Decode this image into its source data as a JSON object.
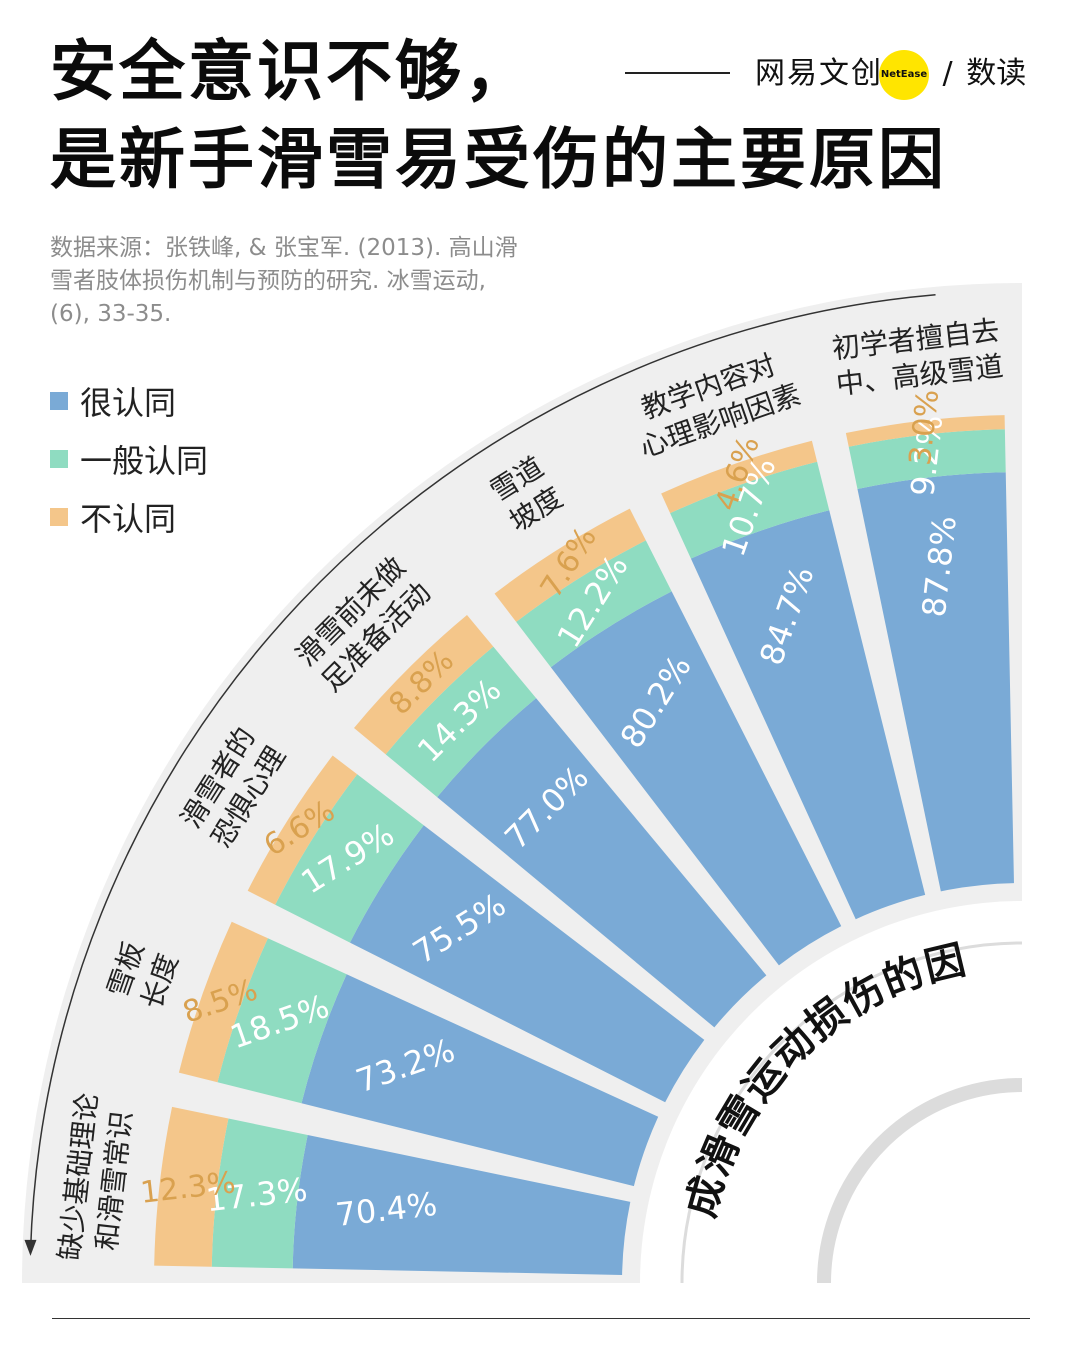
{
  "title": {
    "line1": "安全意识不够，",
    "line2": "是新手滑雪易受伤的主要原因"
  },
  "logo": {
    "brand": "网易文创",
    "badge": "NetEase",
    "separator": "/",
    "product": "数读"
  },
  "source": "数据来源：张铁峰, & 张宝军. (2013). 高山滑雪者肢体损伤机制与预防的研究. 冰雪运动, (6), 33-35.",
  "legend": [
    {
      "label": "很认同",
      "color": "#7aaad6"
    },
    {
      "label": "一般认同",
      "color": "#8fdcc1"
    },
    {
      "label": "不认同",
      "color": "#f4c68a"
    }
  ],
  "chart_data": {
    "type": "bar",
    "layout": "radial stacked bar (quarter fan)",
    "center_label": "造成滑雪运动损伤的因素",
    "unit": "%",
    "categories": [
      "缺少基础理论和滑雪常识",
      "雪板长度",
      "滑雪者的恐惧心理",
      "滑雪前未做足准备活动",
      "雪道坡度",
      "教学内容对心理影响因素",
      "初学者擅自去中、高级雪道"
    ],
    "category_lines": [
      [
        "缺少基础理论",
        "和滑雪常识"
      ],
      [
        "雪板",
        "长度"
      ],
      [
        "滑雪者的",
        "恐惧心理"
      ],
      [
        "滑雪前未做",
        "足准备活动"
      ],
      [
        "雪道",
        "坡度"
      ],
      [
        "教学内容对",
        "心理影响因素"
      ],
      [
        "初学者擅自去",
        "中、高级雪道"
      ]
    ],
    "series": [
      {
        "name": "很认同",
        "color": "#7aaad6",
        "values": [
          70.4,
          73.2,
          75.5,
          77.0,
          80.2,
          84.7,
          87.8
        ]
      },
      {
        "name": "一般认同",
        "color": "#8fdcc1",
        "values": [
          17.3,
          18.5,
          17.9,
          14.3,
          12.2,
          10.7,
          9.2
        ]
      },
      {
        "name": "不认同",
        "color": "#f4c68a",
        "values": [
          12.3,
          8.5,
          6.6,
          8.8,
          7.6,
          4.6,
          3.0
        ]
      }
    ],
    "labels": [
      [
        "70.4%",
        "17.3%",
        "12.3%"
      ],
      [
        "73.2%",
        "18.5%",
        "8.5%"
      ],
      [
        "75.5%",
        "17.9%",
        "6.6%"
      ],
      [
        "77.0%",
        "14.3%",
        "8.8%"
      ],
      [
        "80.2%",
        "12.2%",
        "7.6%"
      ],
      [
        "84.7%",
        "10.7%",
        "4.6%"
      ],
      [
        "87.8%",
        "9.2%",
        "3.0%"
      ]
    ]
  }
}
